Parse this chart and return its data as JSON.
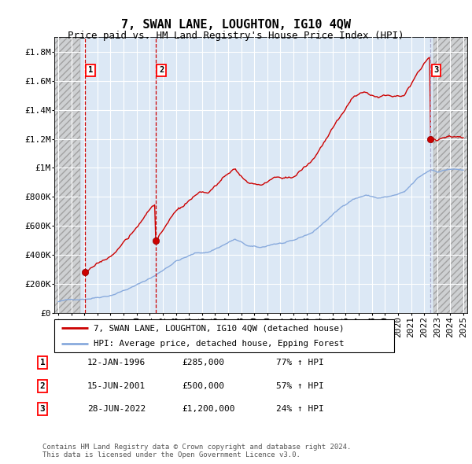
{
  "title": "7, SWAN LANE, LOUGHTON, IG10 4QW",
  "subtitle": "Price paid vs. HM Land Registry's House Price Index (HPI)",
  "ytick_values": [
    0,
    200000,
    400000,
    600000,
    800000,
    1000000,
    1200000,
    1400000,
    1600000,
    1800000
  ],
  "ylim": [
    0,
    1900000
  ],
  "xlim_start": 1993.7,
  "xlim_end": 2025.3,
  "hatch_left_end": 1995.7,
  "hatch_right_start": 2022.7,
  "sale1_date": 1996.04,
  "sale1_price": 285000,
  "sale2_date": 2001.46,
  "sale2_price": 500000,
  "sale3_date": 2022.49,
  "sale3_price": 1200000,
  "line_color_property": "#cc0000",
  "line_color_hpi": "#88aadd",
  "dashed_vline_color": "#cc0000",
  "dashed3_vline_color": "#aaaacc",
  "background_plot": "#dce8f5",
  "grid_color": "#ffffff",
  "legend1_text": "7, SWAN LANE, LOUGHTON, IG10 4QW (detached house)",
  "legend2_text": "HPI: Average price, detached house, Epping Forest",
  "table_rows": [
    [
      "1",
      "12-JAN-1996",
      "£285,000",
      "77% ↑ HPI"
    ],
    [
      "2",
      "15-JUN-2001",
      "£500,000",
      "57% ↑ HPI"
    ],
    [
      "3",
      "28-JUN-2022",
      "£1,200,000",
      "24% ↑ HPI"
    ]
  ],
  "footnote": "Contains HM Land Registry data © Crown copyright and database right 2024.\nThis data is licensed under the Open Government Licence v3.0.",
  "title_fontsize": 11,
  "subtitle_fontsize": 9,
  "tick_fontsize": 8,
  "font_family": "monospace"
}
